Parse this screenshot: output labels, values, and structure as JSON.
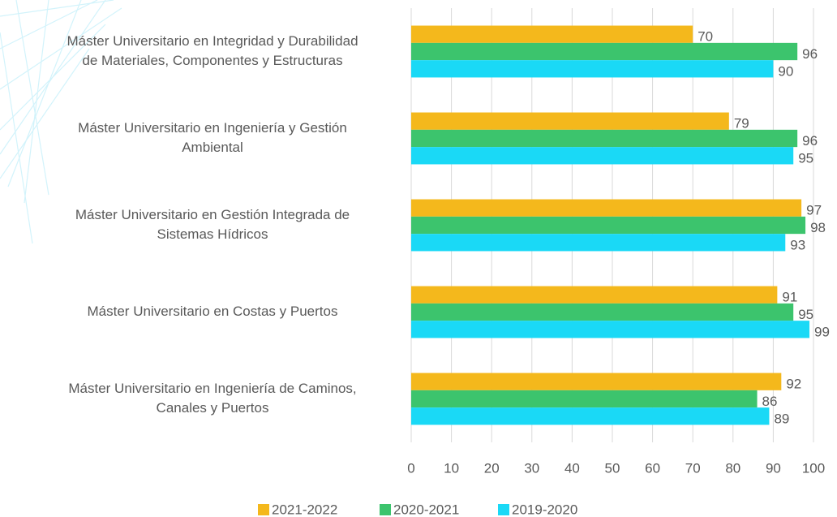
{
  "chart_data": {
    "type": "bar",
    "orientation": "horizontal",
    "categories": [
      [
        "Máster Universitario en Integridad y Durabilidad",
        "de Materiales, Componentes y Estructuras"
      ],
      [
        "Máster Universitario en Ingeniería y Gestión",
        "Ambiental"
      ],
      [
        "Máster Universitario en Gestión Integrada de",
        "Sistemas Hídricos"
      ],
      [
        "Máster Universitario en Costas y Puertos"
      ],
      [
        "Máster Universitario en Ingeniería de Caminos,",
        "Canales y Puertos"
      ]
    ],
    "series": [
      {
        "name": "2021-2022",
        "color": "#f4b81c",
        "values": [
          70,
          79,
          97,
          91,
          92
        ]
      },
      {
        "name": "2020-2021",
        "color": "#3cc46d",
        "values": [
          96,
          96,
          98,
          95,
          86
        ]
      },
      {
        "name": "2019-2020",
        "color": "#1ad9f6",
        "values": [
          90,
          95,
          93,
          99,
          89
        ]
      }
    ],
    "xlim": [
      0,
      100
    ],
    "xticks": [
      0,
      10,
      20,
      30,
      40,
      50,
      60,
      70,
      80,
      90,
      100
    ],
    "grid": true,
    "legend": "bottom"
  }
}
